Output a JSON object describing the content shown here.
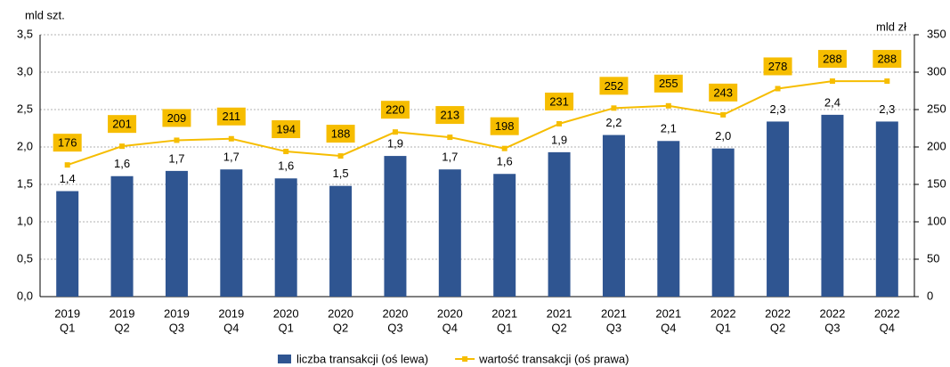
{
  "chart_data": {
    "type": "bar_line",
    "ylabel": "mld szt.",
    "y2label": "mld zł",
    "categories": [
      [
        "2019",
        "Q1"
      ],
      [
        "2019",
        "Q2"
      ],
      [
        "2019",
        "Q3"
      ],
      [
        "2019",
        "Q4"
      ],
      [
        "2020",
        "Q1"
      ],
      [
        "2020",
        "Q2"
      ],
      [
        "2020",
        "Q3"
      ],
      [
        "2020",
        "Q4"
      ],
      [
        "2021",
        "Q1"
      ],
      [
        "2021",
        "Q2"
      ],
      [
        "2021",
        "Q3"
      ],
      [
        "2021",
        "Q4"
      ],
      [
        "2022",
        "Q1"
      ],
      [
        "2022",
        "Q2"
      ],
      [
        "2022",
        "Q3"
      ],
      [
        "2022",
        "Q4"
      ]
    ],
    "series": [
      {
        "name": "liczba transakcji (oś lewa)",
        "type": "bar",
        "axis": "y",
        "color": "#2f5591",
        "values": [
          1.41,
          1.61,
          1.68,
          1.7,
          1.58,
          1.48,
          1.88,
          1.7,
          1.64,
          1.93,
          2.16,
          2.08,
          1.98,
          2.34,
          2.43,
          2.34
        ],
        "value_labels": [
          "1,4",
          "1,6",
          "1,7",
          "1,7",
          "1,6",
          "1,5",
          "1,9",
          "1,7",
          "1,6",
          "1,9",
          "2,2",
          "2,1",
          "2,0",
          "2,3",
          "2,4",
          "2,3"
        ]
      },
      {
        "name": "wartość transakcji (oś prawa)",
        "type": "line",
        "axis": "y2",
        "color": "#f6bd00",
        "values": [
          176,
          201,
          209,
          211,
          194,
          188,
          220,
          213,
          198,
          231,
          252,
          255,
          243,
          278,
          288,
          288
        ]
      }
    ],
    "ylim": [
      0,
      3.5
    ],
    "yticks": [
      {
        "value": 0,
        "label": "0,0"
      },
      {
        "value": 0.5,
        "label": "0,5"
      },
      {
        "value": 1,
        "label": "1,0"
      },
      {
        "value": 1.5,
        "label": "1,5"
      },
      {
        "value": 2,
        "label": "2,0"
      },
      {
        "value": 2.5,
        "label": "2,5"
      },
      {
        "value": 3,
        "label": "3,0"
      },
      {
        "value": 3.5,
        "label": "3,5"
      }
    ],
    "y2lim": [
      0,
      350
    ],
    "y2ticks": [
      0,
      50,
      100,
      150,
      200,
      250,
      300,
      350
    ],
    "grid": true,
    "legend": "bottom"
  }
}
